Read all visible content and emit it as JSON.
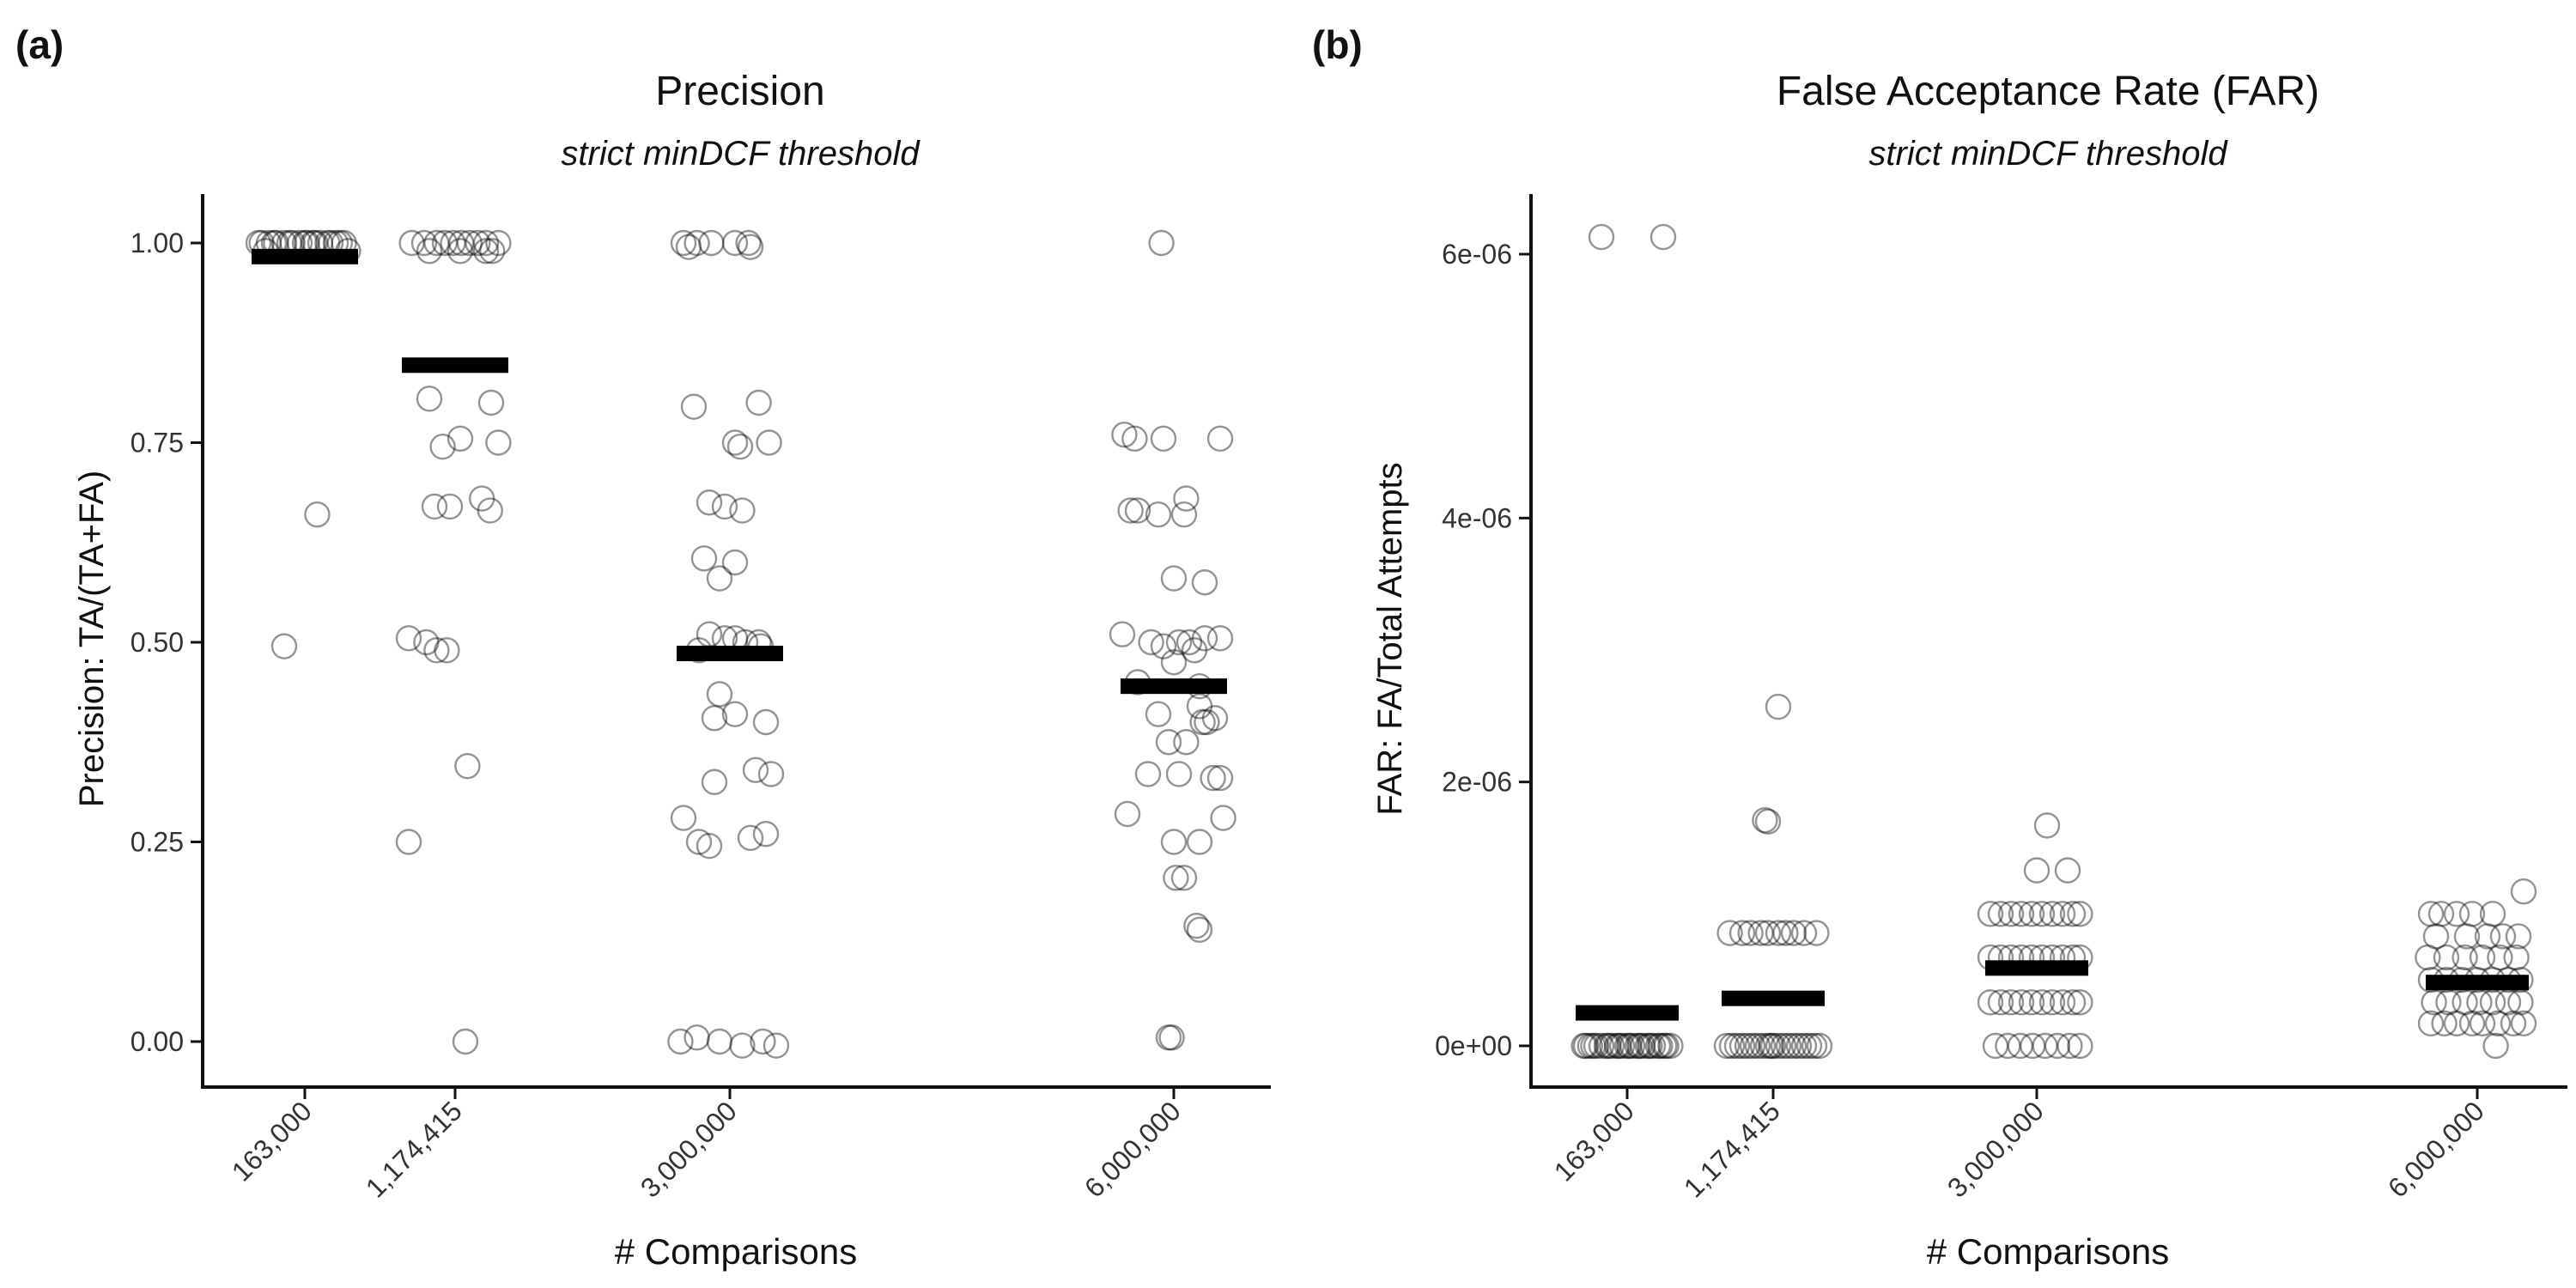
{
  "chart_data": [
    {
      "panel_label": "(a)",
      "type": "scatter",
      "title": "Precision",
      "subtitle": "strict minDCF threshold",
      "xlabel": "# Comparisons",
      "ylabel": "Precision: TA/(TA+FA)",
      "x_scale": "log-ish (categorical positions by number of comparisons)",
      "categories": [
        "163,000",
        "1,174,415",
        "3,000,000",
        "6,000,000"
      ],
      "ylim": [
        -0.05,
        1.07
      ],
      "yticks": [
        0.0,
        0.25,
        0.5,
        0.75,
        1.0
      ],
      "ytick_labels": [
        "0.00",
        "0.25",
        "0.50",
        "0.75",
        "1.00"
      ],
      "grid": false,
      "mean_values": [
        0.983,
        0.847,
        0.486,
        0.445
      ],
      "points": [
        {
          "category": "163,000",
          "y": [
            1.0,
            1.0,
            1.0,
            1.0,
            1.0,
            1.0,
            1.0,
            1.0,
            1.0,
            1.0,
            1.0,
            1.0,
            1.0,
            1.0,
            1.0,
            1.0,
            1.0,
            1.0,
            0.99,
            0.99,
            1.0,
            0.66,
            0.495
          ],
          "jitter": [
            -0.42,
            -0.35,
            -0.28,
            -0.2,
            -0.12,
            -0.05,
            0.02,
            0.08,
            0.15,
            0.22,
            0.3,
            0.38,
            -0.45,
            -0.15,
            0.1,
            0.34,
            -0.3,
            0.25,
            -0.38,
            0.42,
            0.0,
            0.12,
            -0.2
          ]
        },
        {
          "category": "1,174,415",
          "y": [
            1.0,
            1.0,
            1.0,
            1.0,
            1.0,
            1.0,
            1.0,
            1.0,
            1.0,
            1.0,
            0.99,
            0.99,
            0.99,
            0.99,
            0.805,
            0.8,
            0.755,
            0.745,
            0.75,
            0.68,
            0.67,
            0.67,
            0.665,
            0.505,
            0.5,
            0.49,
            0.49,
            0.345,
            0.25,
            0.0
          ],
          "jitter": [
            -0.42,
            -0.3,
            -0.18,
            -0.1,
            -0.02,
            0.06,
            0.14,
            0.22,
            0.3,
            0.42,
            -0.25,
            0.05,
            0.3,
            0.36,
            -0.25,
            0.35,
            0.05,
            -0.12,
            0.42,
            0.26,
            -0.05,
            -0.2,
            0.34,
            -0.45,
            -0.28,
            -0.18,
            -0.08,
            0.12,
            -0.45,
            0.1
          ]
        },
        {
          "category": "3,000,000",
          "y": [
            1.0,
            1.0,
            1.0,
            1.0,
            1.0,
            0.995,
            0.995,
            0.8,
            0.795,
            0.75,
            0.745,
            0.75,
            0.675,
            0.67,
            0.665,
            0.605,
            0.6,
            0.58,
            0.51,
            0.505,
            0.505,
            0.5,
            0.5,
            0.495,
            0.49,
            0.435,
            0.41,
            0.405,
            0.4,
            0.34,
            0.335,
            0.325,
            0.28,
            0.26,
            0.25,
            0.245,
            0.255,
            0.0,
            0.005,
            0.0,
            -0.005,
            0.0,
            -0.005
          ],
          "jitter": [
            -0.45,
            -0.32,
            -0.18,
            0.05,
            0.18,
            0.2,
            -0.4,
            0.28,
            -0.35,
            0.05,
            0.1,
            0.38,
            -0.2,
            -0.05,
            0.12,
            -0.25,
            0.05,
            -0.1,
            -0.2,
            -0.05,
            0.05,
            0.15,
            0.28,
            0.3,
            -0.3,
            -0.1,
            0.05,
            -0.15,
            0.35,
            0.25,
            0.4,
            -0.15,
            -0.45,
            0.35,
            -0.3,
            -0.2,
            0.2,
            -0.48,
            -0.32,
            -0.1,
            0.12,
            0.32,
            0.45
          ]
        },
        {
          "category": "6,000,000",
          "y": [
            1.0,
            0.76,
            0.755,
            0.755,
            0.755,
            0.68,
            0.665,
            0.665,
            0.66,
            0.66,
            0.58,
            0.575,
            0.51,
            0.505,
            0.505,
            0.5,
            0.5,
            0.5,
            0.495,
            0.49,
            0.475,
            0.45,
            0.445,
            0.42,
            0.41,
            0.405,
            0.4,
            0.4,
            0.375,
            0.375,
            0.335,
            0.335,
            0.33,
            0.33,
            0.285,
            0.28,
            0.25,
            0.25,
            0.205,
            0.205,
            0.145,
            0.14,
            0.005,
            0.005
          ],
          "jitter": [
            -0.12,
            -0.48,
            0.45,
            -0.38,
            -0.1,
            0.12,
            -0.42,
            -0.35,
            -0.15,
            0.1,
            0.0,
            0.3,
            -0.5,
            0.45,
            0.3,
            0.15,
            0.05,
            -0.22,
            -0.1,
            0.2,
            0.0,
            -0.35,
            0.25,
            0.25,
            -0.15,
            0.4,
            0.28,
            0.32,
            -0.05,
            0.12,
            -0.25,
            0.05,
            0.45,
            0.38,
            -0.45,
            0.48,
            0.0,
            0.25,
            0.1,
            0.02,
            0.22,
            0.25,
            -0.05,
            -0.02
          ]
        }
      ]
    },
    {
      "panel_label": "(b)",
      "type": "scatter",
      "title": "False Acceptance Rate (FAR)",
      "subtitle": "strict minDCF threshold",
      "xlabel": "# Comparisons",
      "ylabel": "FAR: FA/Total Attempts",
      "categories": [
        "163,000",
        "1,174,415",
        "3,000,000",
        "6,000,000"
      ],
      "ylim": [
        -2.5e-07,
        6.45e-06
      ],
      "yticks": [
        0,
        2e-06,
        4e-06,
        6e-06
      ],
      "ytick_labels": [
        "0e+00",
        "2e-06",
        "4e-06",
        "6e-06"
      ],
      "grid": false,
      "mean_values": [
        2.5e-07,
        3.6e-07,
        5.9e-07,
        4.8e-07
      ],
      "points": [
        {
          "category": "163,000",
          "y": [
            6.13e-06,
            6.13e-06,
            0,
            0,
            0,
            0,
            0,
            0,
            0,
            0,
            0,
            0,
            0,
            0,
            0,
            0,
            0,
            0,
            0,
            0,
            0,
            0,
            0,
            0,
            0,
            0,
            0,
            0
          ],
          "jitter": [
            -0.25,
            0.35,
            -0.42,
            -0.36,
            -0.3,
            -0.25,
            -0.2,
            -0.15,
            -0.1,
            -0.05,
            0.0,
            0.05,
            0.1,
            0.15,
            0.2,
            0.25,
            0.3,
            0.36,
            0.42,
            -0.33,
            -0.18,
            -0.08,
            0.02,
            0.12,
            0.22,
            0.32,
            0.38,
            -0.4
          ]
        },
        {
          "category": "1,174,415",
          "y": [
            2.57e-06,
            1.71e-06,
            1.7e-06,
            8.55e-07,
            8.55e-07,
            8.55e-07,
            8.55e-07,
            8.55e-07,
            8.55e-07,
            8.55e-07,
            8.55e-07,
            8.55e-07,
            8.55e-07,
            0,
            0,
            0,
            0,
            0,
            0,
            0,
            0,
            0,
            0,
            0,
            0,
            0,
            0,
            0,
            0,
            0,
            0,
            0,
            0
          ],
          "jitter": [
            0.05,
            -0.08,
            -0.05,
            -0.42,
            -0.3,
            -0.22,
            -0.12,
            -0.05,
            0.05,
            0.12,
            0.2,
            0.3,
            0.42,
            -0.45,
            -0.4,
            -0.35,
            -0.3,
            -0.25,
            -0.2,
            -0.15,
            -0.1,
            -0.05,
            0.0,
            0.05,
            0.1,
            0.15,
            0.2,
            0.25,
            0.3,
            0.35,
            0.4,
            0.45,
            -0.02
          ]
        },
        {
          "category": "3,000,000",
          "y": [
            1.67e-06,
            1.33e-06,
            1.33e-06,
            1e-06,
            1e-06,
            1e-06,
            1e-06,
            1e-06,
            1e-06,
            1e-06,
            1e-06,
            1e-06,
            1e-06,
            6.7e-07,
            6.7e-07,
            6.7e-07,
            6.7e-07,
            6.7e-07,
            6.7e-07,
            6.7e-07,
            6.7e-07,
            6.7e-07,
            6.7e-07,
            3.3e-07,
            3.3e-07,
            3.3e-07,
            3.3e-07,
            3.3e-07,
            3.3e-07,
            3.3e-07,
            3.3e-07,
            3.3e-07,
            3.3e-07,
            0,
            0,
            0,
            0,
            0,
            0,
            0,
            0
          ],
          "jitter": [
            0.1,
            0.0,
            0.3,
            -0.45,
            -0.35,
            -0.25,
            -0.15,
            -0.05,
            0.05,
            0.15,
            0.25,
            0.35,
            0.42,
            -0.45,
            -0.35,
            -0.25,
            -0.15,
            -0.05,
            0.05,
            0.15,
            0.25,
            0.35,
            0.42,
            -0.45,
            -0.35,
            -0.25,
            -0.15,
            -0.05,
            0.05,
            0.15,
            0.25,
            0.35,
            0.42,
            -0.4,
            -0.28,
            -0.16,
            -0.04,
            0.08,
            0.2,
            0.32,
            0.42
          ]
        },
        {
          "category": "6,000,000",
          "y": [
            1.17e-06,
            1e-06,
            1e-06,
            1e-06,
            1e-06,
            1e-06,
            8.3e-07,
            8.3e-07,
            8.3e-07,
            8.3e-07,
            8.3e-07,
            6.7e-07,
            6.7e-07,
            6.7e-07,
            6.7e-07,
            6.7e-07,
            6.7e-07,
            5e-07,
            5e-07,
            5e-07,
            5e-07,
            5e-07,
            5e-07,
            5e-07,
            3.3e-07,
            3.3e-07,
            3.3e-07,
            3.3e-07,
            3.3e-07,
            3.3e-07,
            3.3e-07,
            1.7e-07,
            1.7e-07,
            1.7e-07,
            1.7e-07,
            1.7e-07,
            1.7e-07,
            1.7e-07,
            1.7e-07,
            0.0
          ],
          "jitter": [
            0.45,
            -0.45,
            -0.35,
            -0.2,
            -0.05,
            0.15,
            -0.4,
            -0.1,
            0.1,
            0.25,
            0.4,
            -0.48,
            -0.3,
            -0.12,
            0.05,
            0.22,
            0.38,
            -0.45,
            -0.3,
            -0.15,
            0.0,
            0.15,
            0.3,
            0.42,
            -0.42,
            -0.28,
            -0.12,
            0.02,
            0.15,
            0.3,
            0.42,
            -0.45,
            -0.32,
            -0.2,
            -0.05,
            0.05,
            0.2,
            0.35,
            0.45,
            0.18
          ]
        }
      ]
    }
  ]
}
